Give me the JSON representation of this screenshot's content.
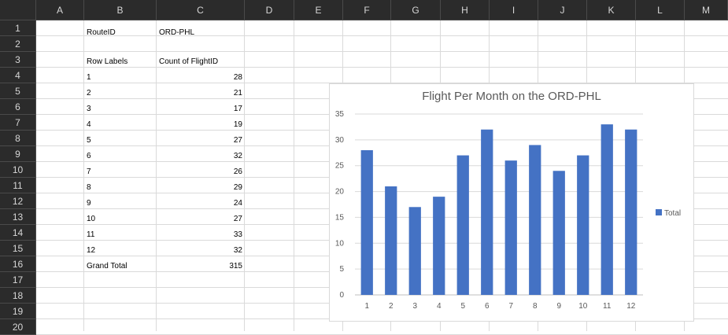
{
  "sheet": {
    "columns": [
      "A",
      "B",
      "C",
      "D",
      "E",
      "F",
      "G",
      "H",
      "I",
      "J",
      "K",
      "L",
      "M"
    ],
    "rows": [
      "1",
      "2",
      "3",
      "4",
      "5",
      "6",
      "7",
      "8",
      "9",
      "10",
      "11",
      "12",
      "13",
      "14",
      "15",
      "16",
      "17",
      "18",
      "19",
      "20"
    ]
  },
  "pivot": {
    "filter_label": "RouteID",
    "filter_value": "ORD-PHL",
    "row_labels_header": "Row Labels",
    "value_header": "Count of FlightID",
    "rows": [
      {
        "label": "1",
        "value": "28"
      },
      {
        "label": "2",
        "value": "21"
      },
      {
        "label": "3",
        "value": "17"
      },
      {
        "label": "4",
        "value": "19"
      },
      {
        "label": "5",
        "value": "27"
      },
      {
        "label": "6",
        "value": "32"
      },
      {
        "label": "7",
        "value": "26"
      },
      {
        "label": "8",
        "value": "29"
      },
      {
        "label": "9",
        "value": "24"
      },
      {
        "label": "10",
        "value": "27"
      },
      {
        "label": "11",
        "value": "33"
      },
      {
        "label": "12",
        "value": "32"
      }
    ],
    "grand_total_label": "Grand Total",
    "grand_total_value": "315"
  },
  "chart_data": {
    "type": "bar",
    "title": "Flight Per Month on the ORD-PHL",
    "categories": [
      "1",
      "2",
      "3",
      "4",
      "5",
      "6",
      "7",
      "8",
      "9",
      "10",
      "11",
      "12"
    ],
    "series": [
      {
        "name": "Total",
        "values": [
          28,
          21,
          17,
          19,
          27,
          32,
          26,
          29,
          24,
          27,
          33,
          32
        ]
      }
    ],
    "ylim": [
      0,
      35
    ],
    "yticks": [
      0,
      5,
      10,
      15,
      20,
      25,
      30,
      35
    ],
    "grid": true,
    "legend": "right",
    "bar_color": "#4472C4"
  }
}
